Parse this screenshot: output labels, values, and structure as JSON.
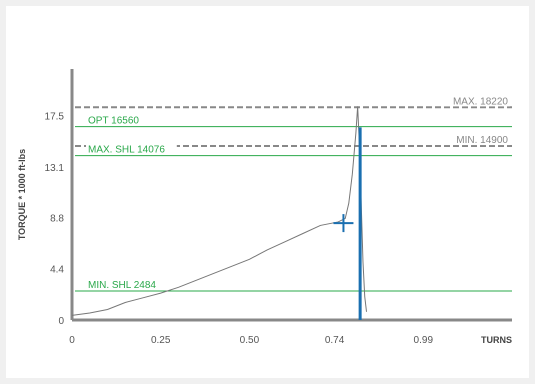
{
  "chart_data": {
    "type": "line",
    "title": "",
    "xlabel": "TURNS",
    "ylabel": "TORQUE * 1000 ft-lbs",
    "xlim": [
      0,
      1.24
    ],
    "ylim": [
      0,
      21.5
    ],
    "x_ticks": [
      0,
      0.25,
      0.5,
      0.74,
      0.99
    ],
    "x_tick_labels": [
      "0",
      "0.25",
      "0.50",
      "0.74",
      "0.99"
    ],
    "y_ticks": [
      0,
      4.4,
      8.8,
      13.1,
      17.5
    ],
    "y_tick_labels": [
      "0",
      "4.4",
      "8.8",
      "13.1",
      "17.5"
    ],
    "grid": false,
    "reference_lines": [
      {
        "label": "MAX. 18220",
        "value": 18.22,
        "style": "dashed",
        "color": "#888888",
        "label_side": "right"
      },
      {
        "label": "OPT 16560",
        "value": 16.56,
        "style": "solid",
        "color": "#2aa84a",
        "label_side": "left"
      },
      {
        "label": "MIN. 14900",
        "value": 14.9,
        "style": "dashed",
        "color": "#888888",
        "label_side": "right"
      },
      {
        "label": "MAX. SHL 14076",
        "value": 14.076,
        "style": "solid",
        "color": "#2aa84a",
        "label_side": "left"
      },
      {
        "label": "MIN. SHL 2484",
        "value": 2.484,
        "style": "solid",
        "color": "#2aa84a",
        "label_side": "left"
      }
    ],
    "series": [
      {
        "color": "#777777",
        "x": [
          0,
          0.05,
          0.1,
          0.15,
          0.2,
          0.25,
          0.3,
          0.35,
          0.4,
          0.45,
          0.5,
          0.55,
          0.6,
          0.65,
          0.7,
          0.75,
          0.77,
          0.78,
          0.79,
          0.8,
          0.805,
          0.81,
          0.815,
          0.82,
          0.825,
          0.83
        ],
        "y": [
          0.4,
          0.6,
          0.9,
          1.5,
          1.9,
          2.3,
          2.8,
          3.4,
          4.0,
          4.6,
          5.2,
          6.0,
          6.7,
          7.4,
          8.1,
          8.4,
          8.7,
          10.0,
          12.5,
          16.0,
          18.3,
          15.0,
          10.0,
          5.0,
          2.0,
          0.7
        ]
      }
    ],
    "markers": [
      {
        "type": "crosshair",
        "x": 0.765,
        "y": 8.3,
        "color": "#1a6fb0"
      },
      {
        "type": "vertical-bar",
        "x": 0.812,
        "y_from": 0,
        "y_to": 16.5,
        "color": "#1a6fb0"
      }
    ],
    "colors": {
      "accent": "#1a6fb0",
      "spec_line": "#2aa84a",
      "limit_line": "#888888",
      "axis": "#888888",
      "curve": "#777777"
    }
  }
}
